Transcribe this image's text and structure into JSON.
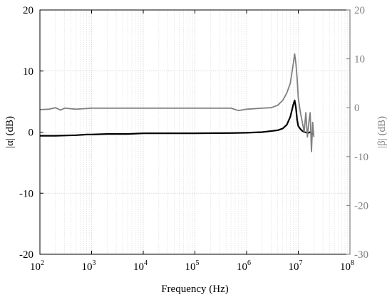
{
  "chart_data": {
    "type": "line",
    "xlabel": "Frequency (Hz)",
    "ylabel": "|α| (dB)",
    "y2label": "|β| (dB)",
    "xscale": "log",
    "xlim": [
      100,
      100000000
    ],
    "ylim": [
      -20,
      20
    ],
    "y2lim": [
      -30,
      20
    ],
    "grid": true,
    "x_tick_labels": [
      {
        "base": "10",
        "exp": "2",
        "value": 100
      },
      {
        "base": "10",
        "exp": "3",
        "value": 1000
      },
      {
        "base": "10",
        "exp": "4",
        "value": 10000
      },
      {
        "base": "10",
        "exp": "5",
        "value": 100000
      },
      {
        "base": "10",
        "exp": "6",
        "value": 1000000
      },
      {
        "base": "10",
        "exp": "7",
        "value": 10000000
      },
      {
        "base": "10",
        "exp": "8",
        "value": 100000000
      }
    ],
    "y_tick_labels": [
      "20",
      "10",
      "0",
      "-10",
      "-20"
    ],
    "y2_tick_labels": [
      "20",
      "10",
      "0",
      "-10",
      "-20",
      "-30"
    ],
    "series": [
      {
        "axis": "left",
        "color": "#000000",
        "x": [
          100,
          200,
          500,
          800,
          1000,
          2000,
          4000,
          5000,
          10000,
          50000,
          100000,
          500000,
          1000000,
          2000000,
          4000000,
          5000000,
          6000000,
          7000000,
          8000000,
          8500000,
          9000000,
          9500000,
          10000000,
          11000000,
          12000000,
          13000000,
          15000000,
          16000000,
          17000000,
          18000000,
          19000000,
          20000000
        ],
        "y": [
          -0.6,
          -0.6,
          -0.5,
          -0.4,
          -0.4,
          -0.3,
          -0.3,
          -0.3,
          -0.2,
          -0.2,
          -0.2,
          -0.15,
          -0.1,
          0,
          0.3,
          0.6,
          1.2,
          2.5,
          4.5,
          5.2,
          4.0,
          2.0,
          1.0,
          0.5,
          0.2,
          0,
          -0.1,
          -0.1,
          0,
          -0.2,
          -0.3,
          -0.3
        ]
      },
      {
        "axis": "right",
        "color": "#808080",
        "x": [
          100,
          150,
          200,
          250,
          300,
          500,
          700,
          1000,
          2000,
          5000,
          10000,
          50000,
          100000,
          300000,
          500000,
          700000,
          1000000,
          2000000,
          3000000,
          4000000,
          5000000,
          6000000,
          7000000,
          8000000,
          8500000,
          9000000,
          9500000,
          10000000,
          11000000,
          12000000,
          13000000,
          14000000,
          15000000,
          16000000,
          17000000,
          18000000,
          19000000,
          20000000
        ],
        "y": [
          -0.4,
          -0.3,
          0,
          -0.5,
          -0.1,
          -0.3,
          -0.2,
          -0.1,
          -0.1,
          -0.1,
          -0.1,
          -0.1,
          -0.1,
          -0.1,
          -0.1,
          -0.6,
          -0.3,
          -0.1,
          0,
          0.5,
          1.5,
          3.0,
          5.0,
          9.0,
          11.0,
          9.0,
          6.0,
          2.0,
          -1.0,
          -3.0,
          -5.0,
          -1.0,
          -6.0,
          -3.0,
          -1.0,
          -9.0,
          -3.0,
          -6.0
        ]
      }
    ]
  }
}
